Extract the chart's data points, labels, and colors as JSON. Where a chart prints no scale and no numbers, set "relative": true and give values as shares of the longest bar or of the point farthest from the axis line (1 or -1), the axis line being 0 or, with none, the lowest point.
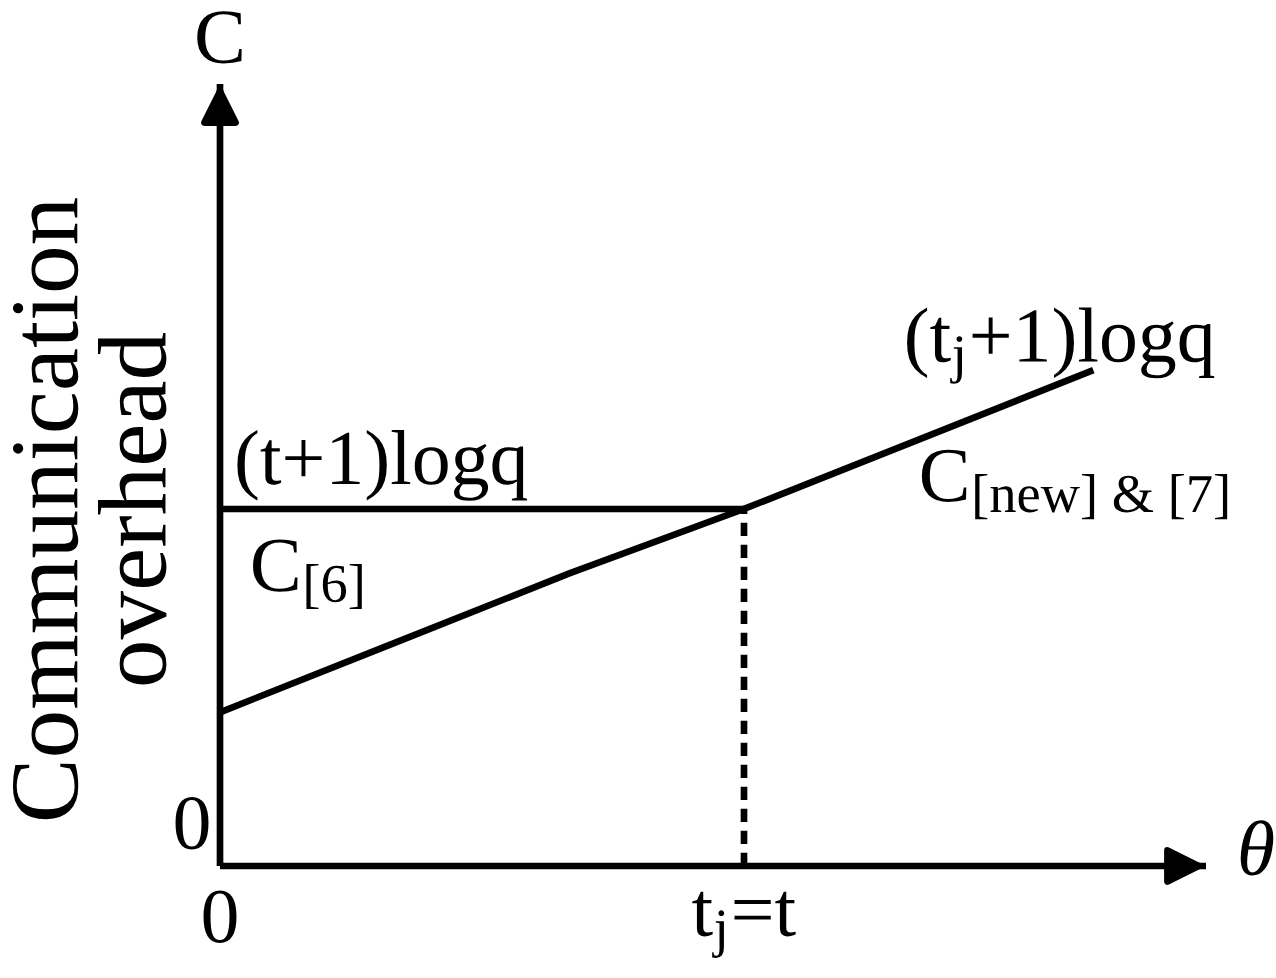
{
  "chart_data": {
    "type": "line",
    "relative": true,
    "xlabel": "θ",
    "ylabel": "Communication overhead",
    "categories": [
      "0",
      null,
      null,
      "t$_{j}$=t",
      null,
      null
    ],
    "series": [
      {
        "name": "C$_{[6]}$",
        "color": "#000000",
        "values": [
          0.72,
          0.72,
          0.72,
          0.72,
          null,
          null
        ]
      },
      {
        "name": "C$_{[new] & [7]}$",
        "color": "#000000",
        "values": [
          0.31,
          0.45,
          0.59,
          0.72,
          0.86,
          1.0
        ]
      },
      {
        "color": "#000000",
        "x": [
          "t$_{j}$=t",
          "t$_{j}$=t"
        ],
        "values": [
          0,
          0.72
        ],
        "line_style": "dashed"
      }
    ],
    "annotations": [
      "(t+1)logq",
      "(t$_{j}$+1)logq",
      "C",
      "0"
    ]
  }
}
